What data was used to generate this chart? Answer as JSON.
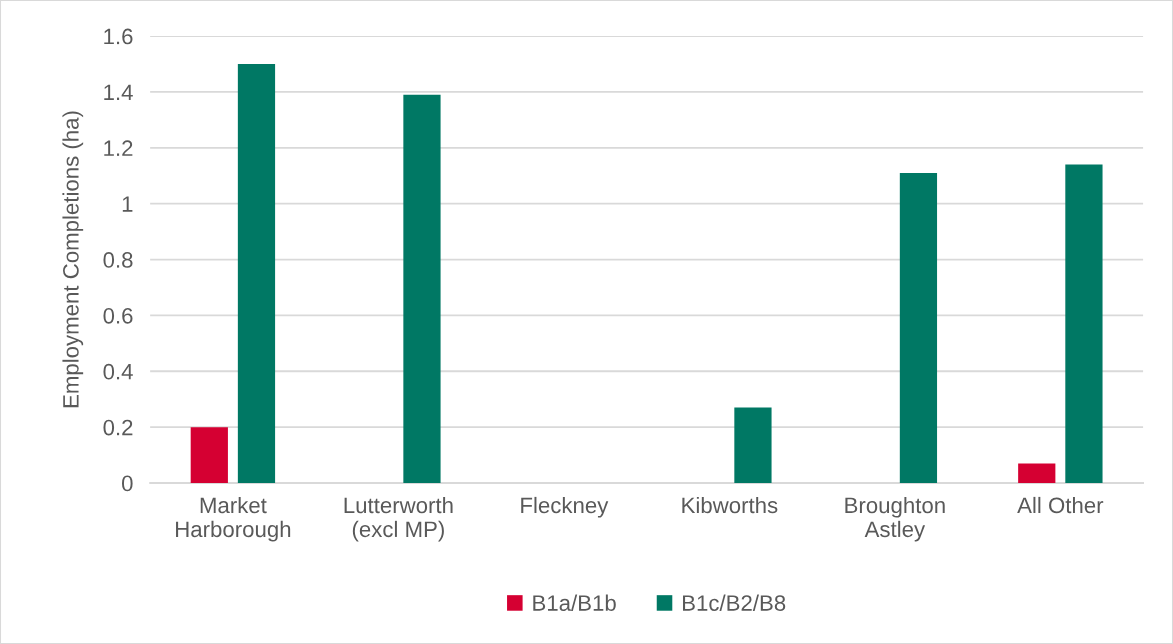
{
  "chart_data": {
    "type": "bar",
    "ylabel": "Employment Completions (ha)",
    "categories": [
      "Market\nHarborough",
      "Lutterworth\n(excl MP)",
      "Fleckney",
      "Kibworths",
      "Broughton\nAstley",
      "All Other"
    ],
    "series": [
      {
        "name": "B1a/B1b",
        "color": "#d50032",
        "values": [
          0.2,
          null,
          null,
          null,
          null,
          0.07
        ]
      },
      {
        "name": "B1c/B2/B8",
        "color": "#007864",
        "values": [
          1.5,
          1.39,
          null,
          0.27,
          1.11,
          1.14
        ]
      }
    ],
    "ylim": [
      0,
      1.6
    ],
    "yticks": [
      0,
      0.2,
      0.4,
      0.6,
      0.8,
      1,
      1.2,
      1.4,
      1.6
    ],
    "grid": "y",
    "legend": "bottom"
  }
}
